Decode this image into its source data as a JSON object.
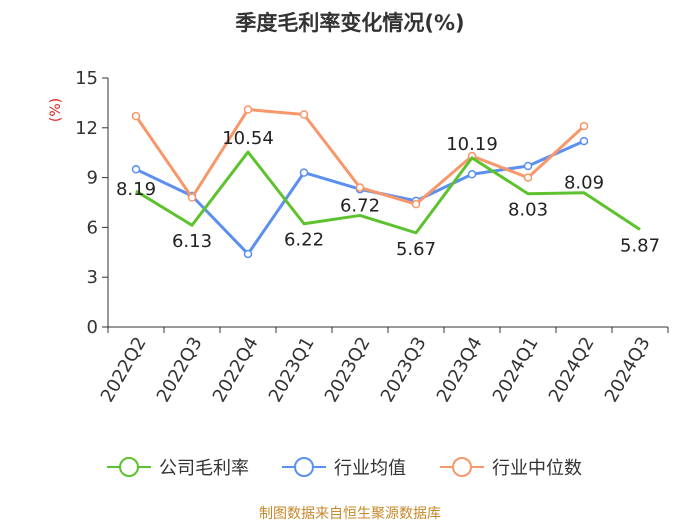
{
  "chart_data": {
    "type": "line",
    "title": "季度毛利率变化情况(%)",
    "ylabel": "(%)",
    "ylim": [
      0,
      15
    ],
    "yticks": [
      "0",
      "3",
      "6",
      "9",
      "12",
      "15"
    ],
    "categories": [
      "2022Q2",
      "2022Q3",
      "2022Q4",
      "2023Q1",
      "2023Q2",
      "2023Q3",
      "2023Q4",
      "2024Q1",
      "2024Q2",
      "2024Q3"
    ],
    "series": [
      {
        "name": "公司毛利率",
        "color": "#5cc22e",
        "values": [
          8.19,
          6.13,
          10.54,
          6.22,
          6.72,
          5.67,
          10.19,
          8.03,
          8.09,
          5.87
        ],
        "labels": [
          "8.19",
          "6.13",
          "10.54",
          "6.22",
          "6.72",
          "5.67",
          "10.19",
          "8.03",
          "8.09",
          "5.87"
        ]
      },
      {
        "name": "行业均值",
        "color": "#5b8ff0",
        "values": [
          9.5,
          7.9,
          4.4,
          9.3,
          8.3,
          7.6,
          9.2,
          9.7,
          11.2,
          null
        ]
      },
      {
        "name": "行业中位数",
        "color": "#f7976a",
        "values": [
          12.7,
          7.8,
          13.1,
          12.8,
          8.4,
          7.4,
          10.3,
          9.0,
          12.1,
          null
        ]
      }
    ],
    "grid": false,
    "legend": "bottom",
    "source": "制图数据来自恒生聚源数据库"
  }
}
